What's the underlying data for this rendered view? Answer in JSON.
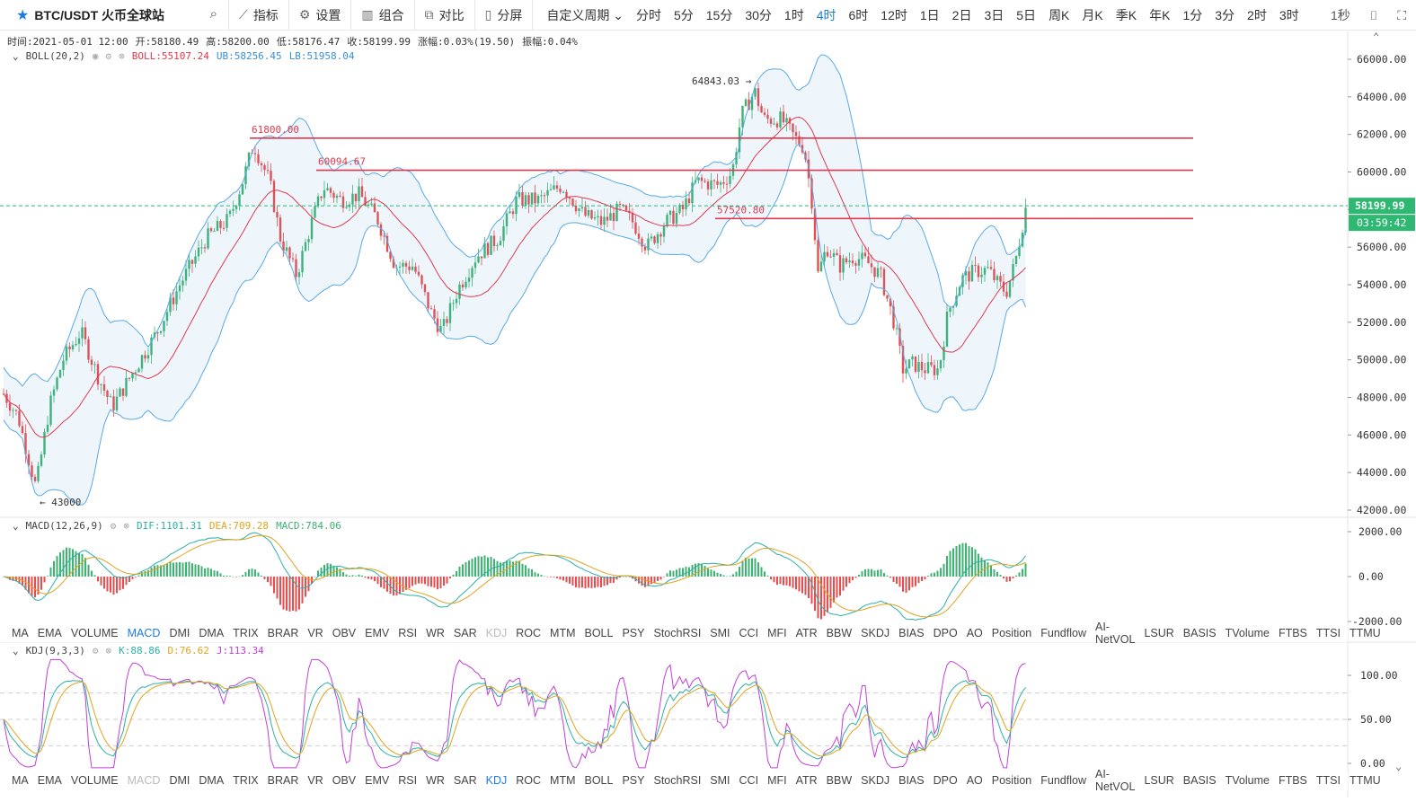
{
  "toolbar": {
    "symbol": "BTC/USDT 火币全球站",
    "buttons": [
      {
        "name": "indicators",
        "label": "指标",
        "icon": "indicator-icon"
      },
      {
        "name": "settings",
        "label": "设置",
        "icon": "gear-icon"
      },
      {
        "name": "combo",
        "label": "组合",
        "icon": "combo-icon"
      },
      {
        "name": "compare",
        "label": "对比",
        "icon": "compare-icon"
      },
      {
        "name": "split",
        "label": "分屏",
        "icon": "split-icon"
      }
    ],
    "custom_period": "自定义周期",
    "periods": [
      "分时",
      "5分",
      "15分",
      "30分",
      "1时",
      "4时",
      "6时",
      "12时",
      "1日",
      "2日",
      "3日",
      "5日",
      "周K",
      "月K",
      "季K",
      "年K",
      "1分",
      "3分",
      "2时",
      "3时"
    ],
    "active_period": "4时",
    "interval": "1秒"
  },
  "ohlc": {
    "time": "时间:2021-05-01 12:00",
    "open": "开:58180.49",
    "high": "高:58200.00",
    "low": "低:58176.47",
    "close": "收:58199.99",
    "change": "涨幅:0.03%(19.50)",
    "amplitude": "振幅:0.04%"
  },
  "boll": {
    "name": "BOLL(20,2)",
    "mid": "BOLL:55107.24",
    "ub": "UB:58256.45",
    "lb": "LB:51958.04"
  },
  "macd": {
    "name": "MACD(12,26,9)",
    "dif": "DIF:1101.31",
    "dea": "DEA:709.28",
    "macd": "MACD:784.06"
  },
  "kdj": {
    "name": "KDJ(9,3,3)",
    "k": "K:88.86",
    "d": "D:76.62",
    "j": "J:113.34"
  },
  "price_axis": [
    "66000.00",
    "64000.00",
    "62000.00",
    "60000.00",
    "58000.00",
    "56000.00",
    "54000.00",
    "52000.00",
    "50000.00",
    "48000.00",
    "46000.00",
    "44000.00",
    "42000.00"
  ],
  "current_price": "58199.99",
  "countdown": "03:59:42",
  "annotations": {
    "high": "64843.03",
    "low": "43000",
    "line1": "61800.00",
    "line2": "60094.67",
    "line3": "57520.80"
  },
  "macd_axis": [
    "2000.00",
    "0.00",
    "-2000.00"
  ],
  "kdj_axis": [
    "100.00",
    "50.00",
    "0.00"
  ],
  "indicator_list": [
    "MA",
    "EMA",
    "VOLUME",
    "MACD",
    "DMI",
    "DMA",
    "TRIX",
    "BRAR",
    "VR",
    "OBV",
    "EMV",
    "RSI",
    "WR",
    "SAR",
    "KDJ",
    "ROC",
    "MTM",
    "BOLL",
    "PSY",
    "StochRSI",
    "SMI",
    "CCI",
    "MFI",
    "ATR",
    "BBW",
    "SKDJ",
    "BIAS",
    "DPO",
    "AO",
    "Position",
    "Fundflow",
    "AI-NetVOL",
    "LSUR",
    "BASIS",
    "TVolume",
    "FTBS",
    "TTSI",
    "TTMU"
  ],
  "colors": {
    "up": "#3cb371",
    "down": "#e84c4c",
    "accent": "#1e7be0",
    "boll_mid": "#e0394f",
    "boll_band": "#5aa9e6",
    "price_tag": "#2eb872"
  }
}
